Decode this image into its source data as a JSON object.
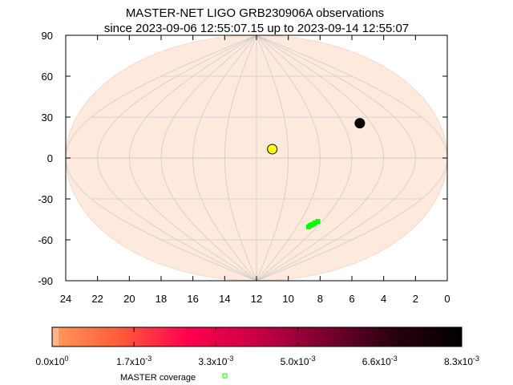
{
  "chart_data": {
    "type": "scatter",
    "title": "MASTER-NET LIGO GRB230906A observations",
    "subtitle": "since 2023-09-06 12:55:07.15 up to 2023-09-14 12:55:07",
    "projection": "aitoff-like ellipse",
    "x_ticks": [
      "24",
      "22",
      "20",
      "18",
      "16",
      "14",
      "12",
      "10",
      "8",
      "6",
      "4",
      "2",
      "0"
    ],
    "y_ticks": [
      "90",
      "60",
      "30",
      "0",
      "-30",
      "-60",
      "-90"
    ],
    "xlim": [
      24,
      0
    ],
    "ylim": [
      -90,
      90
    ],
    "grid": true,
    "colors": {
      "sky_fill": "#fdeadd",
      "grid": "#c8c8c8",
      "coverage": "#00ff00",
      "sun": "#ffff00",
      "moon": "#000000"
    },
    "markers": [
      {
        "name": "yellow-point",
        "ra_h": 11.0,
        "dec": 6.5,
        "color": "#ffff00"
      },
      {
        "name": "black-point",
        "ra_h": 4.8,
        "dec": 25.5,
        "color": "#000000"
      }
    ],
    "coverage_points": [
      {
        "ra_h": 6.4,
        "dec": -46.5
      },
      {
        "ra_h": 6.55,
        "dec": -47.5
      },
      {
        "ra_h": 6.6,
        "dec": -48.5
      },
      {
        "ra_h": 6.8,
        "dec": -49.5
      },
      {
        "ra_h": 6.85,
        "dec": -50.5
      },
      {
        "ra_h": 6.7,
        "dec": -49.0
      }
    ],
    "colorbar": {
      "tick_labels": [
        {
          "mant": "0.0x10",
          "exp": "0"
        },
        {
          "mant": "1.7x10",
          "exp": "-3"
        },
        {
          "mant": "3.3x10",
          "exp": "-3"
        },
        {
          "mant": "5.0x10",
          "exp": "-3"
        },
        {
          "mant": "6.6x10",
          "exp": "-3"
        },
        {
          "mant": "8.3x10",
          "exp": "-3"
        }
      ],
      "gradient": [
        "#ff9a5c",
        "#ff5a3a",
        "#ff0050",
        "#c80045",
        "#7a0030",
        "#2a000f",
        "#000000"
      ]
    },
    "legend": {
      "label": "MASTER coverage"
    }
  }
}
